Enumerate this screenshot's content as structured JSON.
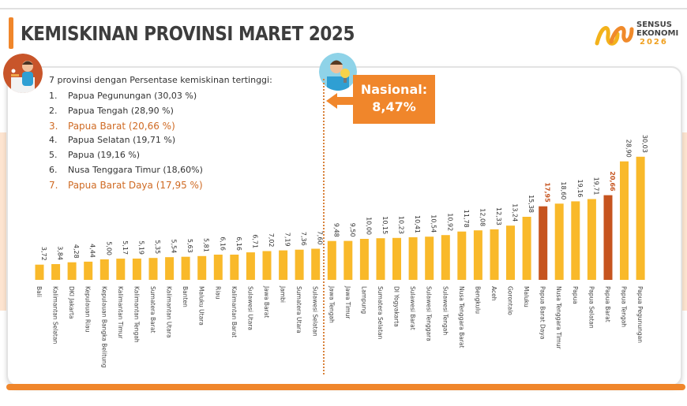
{
  "header": {
    "title": "KEMISKINAN PROVINSI MARET 2025",
    "logo_line1": "SENSUS",
    "logo_line2": "EKONOMI",
    "logo_year": "2026"
  },
  "top7": {
    "intro": "7 provinsi dengan Persentase kemiskinan tertinggi:",
    "items": [
      {
        "num": "1.",
        "text": "Papua Pegunungan (30,03 %)"
      },
      {
        "num": "2.",
        "text": "Papua Tengah (28,90 %)"
      },
      {
        "num": "3.",
        "text": "Papua Barat (20,66 %)"
      },
      {
        "num": "4.",
        "text": "Papua Selatan (19,71 %)"
      },
      {
        "num": "5.",
        "text": "Papua (19,16 %)"
      },
      {
        "num": "6.",
        "text": "Nusa Tenggara Timur (18,60%)"
      },
      {
        "num": "7.",
        "text": "Papua Barat Daya (17,95 %)"
      }
    ]
  },
  "nasional": {
    "label": "Nasional:",
    "value": "8,47%"
  },
  "colors": {
    "bar": "#f9b92a",
    "bar_highlight": "#c6541f",
    "accent": "#f0862b",
    "label_highlight": "#cf6a23",
    "text": "#333333"
  },
  "chart_data": {
    "type": "bar",
    "title": "",
    "xlabel": "",
    "ylabel": "",
    "ylim": [
      0,
      32
    ],
    "categories": [
      "Bali",
      "Kalimantan Selatan",
      "DKI Jakarta",
      "Kepulauan Riau",
      "Kepulauan Bangka Belitung",
      "Kalimantan Timur",
      "Kalimantan Tengah",
      "Sumatera Barat",
      "Kalimantan Utara",
      "Banten",
      "Maluku Utara",
      "Riau",
      "Kalimantan Barat",
      "Sulawesi Utara",
      "Jawa Barat",
      "Jambi",
      "Sumatera Utara",
      "Sulawesi Selatan",
      "Jawa Tengah",
      "Jawa Timur",
      "Lampung",
      "Sumatera Selatan",
      "DI Yogyakarta",
      "Sulawesi Barat",
      "Sulawesi Tenggara",
      "Sulawesi Tengah",
      "Nusa Tenggara Barat",
      "Bengkulu",
      "Aceh",
      "Gorontalo",
      "Maluku",
      "Papua Barat Daya",
      "Nusa Tenggara Timur",
      "Papua",
      "Papua Selatan",
      "Papua Barat",
      "Papua Tengah",
      "Papua Pegunungan"
    ],
    "values": [
      3.72,
      3.84,
      4.28,
      4.44,
      5.0,
      5.17,
      5.19,
      5.35,
      5.54,
      5.63,
      5.81,
      6.16,
      6.16,
      6.71,
      7.02,
      7.19,
      7.36,
      7.6,
      9.48,
      9.5,
      10.0,
      10.15,
      10.23,
      10.41,
      10.54,
      10.92,
      11.78,
      12.08,
      12.33,
      13.24,
      15.38,
      17.95,
      18.6,
      19.16,
      19.71,
      20.66,
      28.9,
      30.03
    ],
    "value_labels": [
      "3,72",
      "3,84",
      "4,28",
      "4,44",
      "5,00",
      "5,17",
      "5,19",
      "5,35",
      "5,54",
      "5,63",
      "5,81",
      "6,16",
      "6,16",
      "6,71",
      "7,02",
      "7,19",
      "7,36",
      "7,60",
      "9,48",
      "9,50",
      "10,00",
      "10,15",
      "10,23",
      "10,41",
      "10,54",
      "10,92",
      "11,78",
      "12,08",
      "12,33",
      "13,24",
      "15,38",
      "17,95",
      "18,60",
      "19,16",
      "19,71",
      "20,66",
      "28,90",
      "30,03"
    ],
    "highlighted": [
      "Papua Barat Daya",
      "Papua Barat"
    ],
    "grid": false,
    "legend": "none"
  }
}
